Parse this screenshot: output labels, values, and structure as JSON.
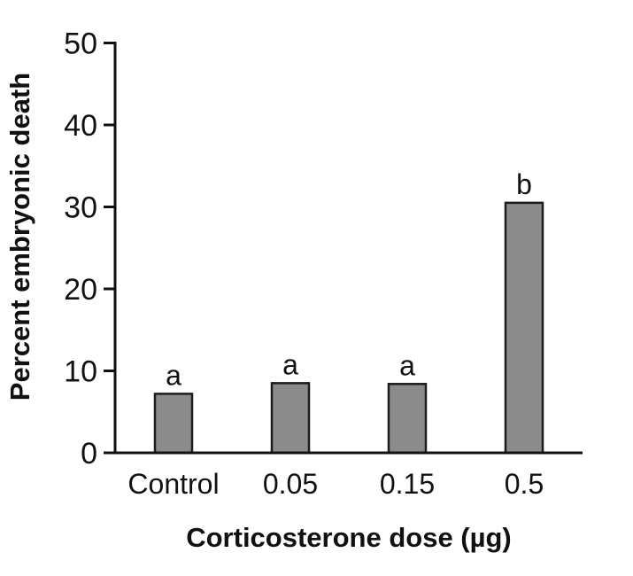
{
  "figure": {
    "background": "#ffffff",
    "text_color": "#111111",
    "axis_color": "#111111"
  },
  "chart_data": {
    "type": "bar",
    "title": "",
    "categories": [
      "Control",
      "0.05",
      "0.15",
      "0.5"
    ],
    "values": [
      7.2,
      8.5,
      8.4,
      30.5
    ],
    "significance_letters": [
      "a",
      "a",
      "a",
      "b"
    ],
    "xlabel": "Corticosterone dose (µg)",
    "ylabel": "Percent embryonic death",
    "ylim": [
      0,
      50
    ],
    "yticks": [
      0,
      10,
      20,
      30,
      40,
      50
    ],
    "grid": false,
    "legend": "none",
    "bar_fill": "#8b8b8b",
    "bar_stroke": "#1c1c1c"
  }
}
